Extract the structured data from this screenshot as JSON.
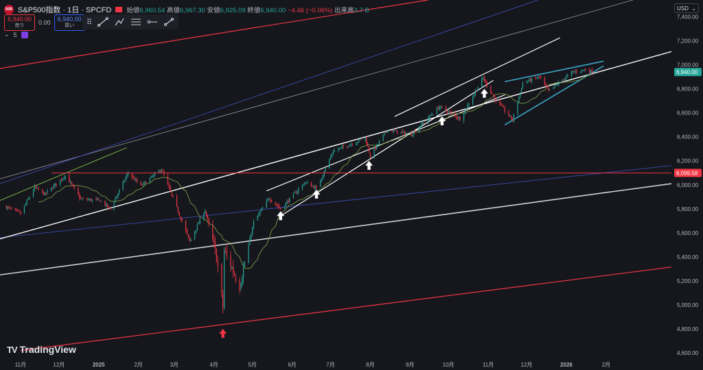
{
  "header": {
    "logo_text": "500",
    "symbol": "S&P500指数 · 1日 · SPCFD",
    "ohlc": [
      {
        "label": "始値",
        "value": "6,960.54"
      },
      {
        "label": "高値",
        "value": "6,967.30"
      },
      {
        "label": "安値",
        "value": "6,925.09"
      },
      {
        "label": "終値",
        "value": "6,940.00"
      }
    ],
    "change": "−4.46 (−0.06%)",
    "volume_label": "出来高",
    "volume_value": "3.7 B"
  },
  "trade": {
    "sell_price": "6,940.00",
    "sell_label": "売り",
    "spread": "0.00",
    "buy_price": "6,940.00",
    "buy_label": "買い"
  },
  "toolbar_icons": [
    "drag-handle-icon",
    "trend-line-icon",
    "path-icon",
    "parallel-channel-icon",
    "horizontal-ray-icon",
    "line-tool-icon"
  ],
  "indicator_count": "5",
  "currency_select": "USD",
  "brand": "TradingView",
  "colors": {
    "background": "#16171c",
    "up": "#26a69a",
    "down": "#f23645",
    "ma": "#7a9a4a",
    "red_line": "#f23645",
    "blue_line": "#2e3a8c",
    "white_line": "#ffffff",
    "cyan_line": "#3aa7c9"
  },
  "chart_data": {
    "type": "candlestick",
    "title": "S&P500指数 · 1日 · SPCFD",
    "y_axis": {
      "ticks": [
        "4,600.00",
        "4,800.00",
        "5,000.00",
        "5,200.00",
        "5,400.00",
        "5,600.00",
        "5,800.00",
        "6,000.00",
        "6,200.00",
        "6,400.00",
        "6,600.00",
        "6,800.00",
        "7,000.00",
        "7,200.00",
        "7,400.00"
      ],
      "range": [
        4560,
        7540
      ]
    },
    "x_axis": {
      "ticks": [
        "11月",
        "12月",
        "2025",
        "2月",
        "3月",
        "4月",
        "5月",
        "6月",
        "7月",
        "8月",
        "9月",
        "10月",
        "11月",
        "12月",
        "2026",
        "2月"
      ],
      "tick_dates": [
        "2024-11-01",
        "2024-12-01",
        "2025-01-01",
        "2025-02-01",
        "2025-03-01",
        "2025-04-01",
        "2025-05-01",
        "2025-06-01",
        "2025-07-01",
        "2025-08-01",
        "2025-09-01",
        "2025-10-01",
        "2025-11-01",
        "2025-12-01",
        "2026-01-01",
        "2026-02-01"
      ],
      "range": [
        "2024-10-16",
        "2026-03-24"
      ]
    },
    "close_anchors": [
      {
        "date": "2024-10-20",
        "close": 5820
      },
      {
        "date": "2024-11-01",
        "close": 5760
      },
      {
        "date": "2024-11-12",
        "close": 5980
      },
      {
        "date": "2024-11-20",
        "close": 5920
      },
      {
        "date": "2024-12-06",
        "close": 6080
      },
      {
        "date": "2024-12-18",
        "close": 5880
      },
      {
        "date": "2025-01-02",
        "close": 5870
      },
      {
        "date": "2025-01-10",
        "close": 5800
      },
      {
        "date": "2025-01-24",
        "close": 6100
      },
      {
        "date": "2025-02-03",
        "close": 5990
      },
      {
        "date": "2025-02-19",
        "close": 6130
      },
      {
        "date": "2025-03-04",
        "close": 5780
      },
      {
        "date": "2025-03-13",
        "close": 5530
      },
      {
        "date": "2025-03-25",
        "close": 5790
      },
      {
        "date": "2025-04-03",
        "close": 5400
      },
      {
        "date": "2025-04-08",
        "close": 4980
      },
      {
        "date": "2025-04-09",
        "close": 5450
      },
      {
        "date": "2025-04-21",
        "close": 5160
      },
      {
        "date": "2025-05-02",
        "close": 5690
      },
      {
        "date": "2025-05-14",
        "close": 5890
      },
      {
        "date": "2025-05-23",
        "close": 5800
      },
      {
        "date": "2025-06-11",
        "close": 6020
      },
      {
        "date": "2025-06-20",
        "close": 5970
      },
      {
        "date": "2025-07-03",
        "close": 6280
      },
      {
        "date": "2025-07-28",
        "close": 6390
      },
      {
        "date": "2025-08-01",
        "close": 6240
      },
      {
        "date": "2025-08-14",
        "close": 6460
      },
      {
        "date": "2025-09-02",
        "close": 6420
      },
      {
        "date": "2025-09-24",
        "close": 6650
      },
      {
        "date": "2025-10-10",
        "close": 6550
      },
      {
        "date": "2025-10-28",
        "close": 6890
      },
      {
        "date": "2025-11-06",
        "close": 6720
      },
      {
        "date": "2025-11-20",
        "close": 6540
      },
      {
        "date": "2025-11-28",
        "close": 6850
      },
      {
        "date": "2025-12-11",
        "close": 6900
      },
      {
        "date": "2025-12-18",
        "close": 6780
      },
      {
        "date": "2026-01-06",
        "close": 6940
      },
      {
        "date": "2026-01-16",
        "close": 6960
      },
      {
        "date": "2026-01-21",
        "close": 6940
      }
    ],
    "moving_average": {
      "type": "SMA",
      "color": "#7a9a4a"
    },
    "horizontal_levels": [
      {
        "price": 6099.58,
        "label": "6,099.58",
        "color": "#f23645"
      }
    ],
    "last_price": {
      "value": 6940.0,
      "label": "6,940.00",
      "color": "#26a69a"
    },
    "drawings": {
      "trend_lines": [
        {
          "color": "#f23645",
          "width": 1.2,
          "p1": {
            "date": "2024-10-16",
            "price": 6970
          },
          "p2": {
            "date": "2025-09-15",
            "price": 7540
          }
        },
        {
          "color": "#f23645",
          "width": 1.2,
          "p1": {
            "date": "2024-11-01",
            "price": 4620
          },
          "p2": {
            "date": "2026-03-24",
            "price": 5315
          }
        },
        {
          "color": "#8a8d99",
          "width": 0.9,
          "p1": {
            "date": "2024-10-16",
            "price": 6050
          },
          "p2": {
            "date": "2026-02-22",
            "price": 7540
          }
        },
        {
          "color": "#3a4bb0",
          "width": 0.9,
          "p1": {
            "date": "2024-10-16",
            "price": 5560
          },
          "p2": {
            "date": "2026-03-24",
            "price": 6160
          }
        },
        {
          "color": "#3a4bb0",
          "width": 0.9,
          "p1": {
            "date": "2024-10-16",
            "price": 6010
          },
          "p2": {
            "date": "2025-12-10",
            "price": 7540
          }
        },
        {
          "color": "#d0d3db",
          "width": 1.6,
          "p1": {
            "date": "2024-10-16",
            "price": 5250
          },
          "p2": {
            "date": "2026-03-24",
            "price": 6010
          }
        },
        {
          "color": "#ffffff",
          "width": 1.4,
          "p1": {
            "date": "2024-10-16",
            "price": 5550
          },
          "p2": {
            "date": "2026-03-24",
            "price": 7110
          }
        },
        {
          "color": "#ffffff",
          "width": 1.2,
          "p1": {
            "date": "2025-05-12",
            "price": 5950
          },
          "p2": {
            "date": "2025-11-14",
            "price": 6750
          }
        },
        {
          "color": "#ffffff",
          "width": 1.2,
          "p1": {
            "date": "2025-05-23",
            "price": 5740
          },
          "p2": {
            "date": "2025-11-05",
            "price": 6870
          }
        },
        {
          "color": "#ffffff",
          "width": 1.2,
          "p1": {
            "date": "2025-08-20",
            "price": 6570
          },
          "p2": {
            "date": "2025-12-27",
            "price": 7225
          }
        },
        {
          "color": "#7ab648",
          "width": 1.0,
          "p1": {
            "date": "2024-10-16",
            "price": 5870
          },
          "p2": {
            "date": "2025-01-23",
            "price": 6310
          }
        },
        {
          "color": "#3aa7c9",
          "width": 1.6,
          "p1": {
            "date": "2025-11-14",
            "price": 6860
          },
          "p2": {
            "date": "2026-01-30",
            "price": 7030
          }
        },
        {
          "color": "#3aa7c9",
          "width": 1.6,
          "p1": {
            "date": "2025-11-14",
            "price": 6500
          },
          "p2": {
            "date": "2026-01-30",
            "price": 6990
          }
        }
      ],
      "arrows": [
        {
          "date": "2025-04-08",
          "price": 4760,
          "direction": "up",
          "color": "#f23645"
        },
        {
          "date": "2025-05-23",
          "price": 5740,
          "direction": "up",
          "color": "#ffffff"
        },
        {
          "date": "2025-06-20",
          "price": 5920,
          "direction": "up",
          "color": "#ffffff"
        },
        {
          "date": "2025-07-31",
          "price": 6160,
          "direction": "up",
          "color": "#ffffff"
        },
        {
          "date": "2025-09-26",
          "price": 6530,
          "direction": "up",
          "color": "#ffffff"
        },
        {
          "date": "2025-10-29",
          "price": 6760,
          "direction": "up",
          "color": "#ffffff"
        }
      ]
    },
    "grid": false,
    "legend": "top-left"
  }
}
